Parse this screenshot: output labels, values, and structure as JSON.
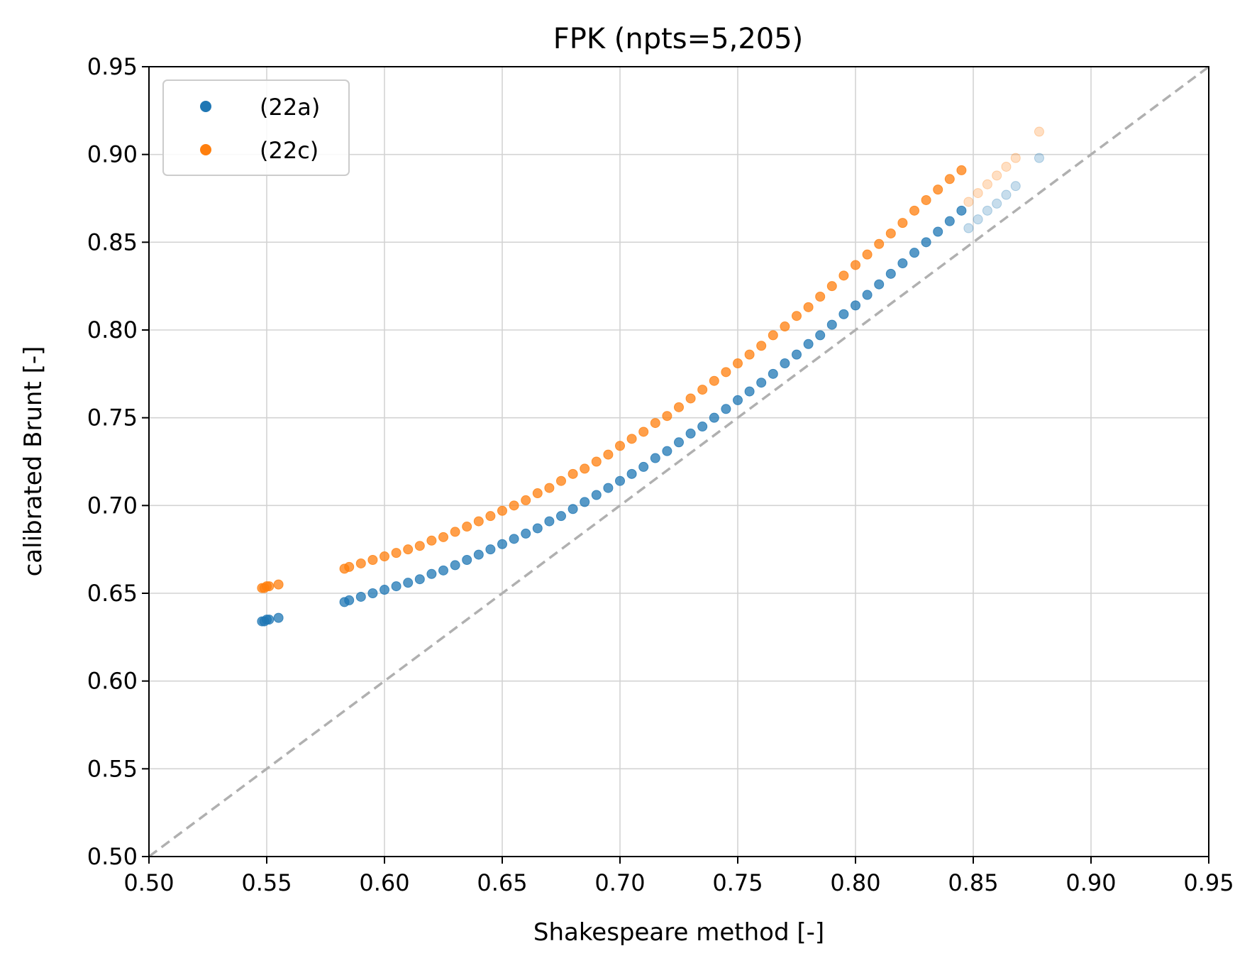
{
  "chart_data": {
    "type": "scatter",
    "title": "FPK (npts=5,205)",
    "xlabel": "Shakespeare method [-]",
    "ylabel": "calibrated Brunt [-]",
    "xlim": [
      0.5,
      0.95
    ],
    "ylim": [
      0.5,
      0.95
    ],
    "xticks": [
      "0.50",
      "0.55",
      "0.60",
      "0.65",
      "0.70",
      "0.75",
      "0.80",
      "0.85",
      "0.90",
      "0.95"
    ],
    "yticks": [
      "0.50",
      "0.55",
      "0.60",
      "0.65",
      "0.70",
      "0.75",
      "0.80",
      "0.85",
      "0.90",
      "0.95"
    ],
    "grid": true,
    "legend_position": "top-left",
    "reference_line": {
      "style": "dashed",
      "color": "#b0b0b0",
      "from": [
        0.5,
        0.5
      ],
      "to": [
        0.95,
        0.95
      ]
    },
    "series": [
      {
        "name": "(22a)",
        "color": "#1f77b4",
        "x": [
          0.548,
          0.549,
          0.55,
          0.551,
          0.555,
          0.583,
          0.585,
          0.59,
          0.595,
          0.6,
          0.605,
          0.61,
          0.615,
          0.62,
          0.625,
          0.63,
          0.635,
          0.64,
          0.645,
          0.65,
          0.655,
          0.66,
          0.665,
          0.67,
          0.675,
          0.68,
          0.685,
          0.69,
          0.695,
          0.7,
          0.705,
          0.71,
          0.715,
          0.72,
          0.725,
          0.73,
          0.735,
          0.74,
          0.745,
          0.75,
          0.755,
          0.76,
          0.765,
          0.77,
          0.775,
          0.78,
          0.785,
          0.79,
          0.795,
          0.8,
          0.805,
          0.81,
          0.815,
          0.82,
          0.825,
          0.83,
          0.835,
          0.84,
          0.845,
          0.848,
          0.852,
          0.856,
          0.86,
          0.864,
          0.868,
          0.878
        ],
        "y": [
          0.634,
          0.634,
          0.635,
          0.635,
          0.636,
          0.645,
          0.646,
          0.648,
          0.65,
          0.652,
          0.654,
          0.656,
          0.658,
          0.661,
          0.663,
          0.666,
          0.669,
          0.672,
          0.675,
          0.678,
          0.681,
          0.684,
          0.687,
          0.691,
          0.694,
          0.698,
          0.702,
          0.706,
          0.71,
          0.714,
          0.718,
          0.722,
          0.727,
          0.731,
          0.736,
          0.741,
          0.745,
          0.75,
          0.755,
          0.76,
          0.765,
          0.77,
          0.775,
          0.781,
          0.786,
          0.792,
          0.797,
          0.803,
          0.809,
          0.814,
          0.82,
          0.826,
          0.832,
          0.838,
          0.844,
          0.85,
          0.856,
          0.862,
          0.868,
          0.858,
          0.863,
          0.868,
          0.872,
          0.877,
          0.882,
          0.898
        ]
      },
      {
        "name": "(22c)",
        "color": "#ff7f0e",
        "x": [
          0.548,
          0.549,
          0.55,
          0.551,
          0.555,
          0.583,
          0.585,
          0.59,
          0.595,
          0.6,
          0.605,
          0.61,
          0.615,
          0.62,
          0.625,
          0.63,
          0.635,
          0.64,
          0.645,
          0.65,
          0.655,
          0.66,
          0.665,
          0.67,
          0.675,
          0.68,
          0.685,
          0.69,
          0.695,
          0.7,
          0.705,
          0.71,
          0.715,
          0.72,
          0.725,
          0.73,
          0.735,
          0.74,
          0.745,
          0.75,
          0.755,
          0.76,
          0.765,
          0.77,
          0.775,
          0.78,
          0.785,
          0.79,
          0.795,
          0.8,
          0.805,
          0.81,
          0.815,
          0.82,
          0.825,
          0.83,
          0.835,
          0.84,
          0.845,
          0.848,
          0.852,
          0.856,
          0.86,
          0.864,
          0.868,
          0.878
        ],
        "y": [
          0.653,
          0.653,
          0.654,
          0.654,
          0.655,
          0.664,
          0.665,
          0.667,
          0.669,
          0.671,
          0.673,
          0.675,
          0.677,
          0.68,
          0.682,
          0.685,
          0.688,
          0.691,
          0.694,
          0.697,
          0.7,
          0.703,
          0.707,
          0.71,
          0.714,
          0.718,
          0.721,
          0.725,
          0.729,
          0.734,
          0.738,
          0.742,
          0.747,
          0.751,
          0.756,
          0.761,
          0.766,
          0.771,
          0.776,
          0.781,
          0.786,
          0.791,
          0.797,
          0.802,
          0.808,
          0.813,
          0.819,
          0.825,
          0.831,
          0.837,
          0.843,
          0.849,
          0.855,
          0.861,
          0.868,
          0.874,
          0.88,
          0.886,
          0.891,
          0.873,
          0.878,
          0.883,
          0.888,
          0.893,
          0.898,
          0.913
        ]
      }
    ]
  }
}
